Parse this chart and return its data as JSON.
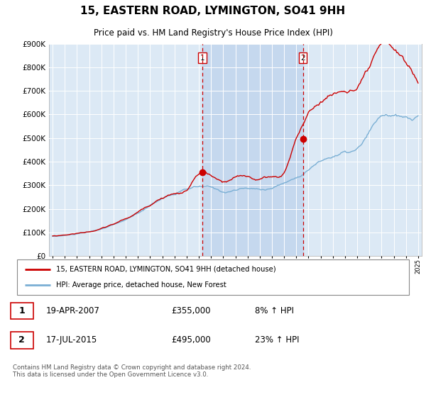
{
  "title": "15, EASTERN ROAD, LYMINGTON, SO41 9HH",
  "subtitle": "Price paid vs. HM Land Registry's House Price Index (HPI)",
  "legend_line1": "15, EASTERN ROAD, LYMINGTON, SO41 9HH (detached house)",
  "legend_line2": "HPI: Average price, detached house, New Forest",
  "transaction1_date": "19-APR-2007",
  "transaction1_price": "£355,000",
  "transaction1_hpi": "8% ↑ HPI",
  "transaction2_date": "17-JUL-2015",
  "transaction2_price": "£495,000",
  "transaction2_hpi": "23% ↑ HPI",
  "footer": "Contains HM Land Registry data © Crown copyright and database right 2024.\nThis data is licensed under the Open Government Licence v3.0.",
  "vline1_x": 2007.29,
  "vline2_x": 2015.54,
  "marker1_y": 355000,
  "marker2_y": 495000,
  "ylim": [
    0,
    900000
  ],
  "xlim_start": 1994.7,
  "xlim_end": 2025.3,
  "background_color": "#ffffff",
  "plot_bg_color": "#dce9f5",
  "shade_color": "#c5d8ee",
  "grid_color": "#ffffff",
  "red_line_color": "#cc0000",
  "blue_line_color": "#7aafd4",
  "vline_color": "#cc0000",
  "hpi_annual_years": [
    1995,
    1996,
    1997,
    1998,
    1999,
    2000,
    2001,
    2002,
    2003,
    2004,
    2005,
    2006,
    2007,
    2008,
    2009,
    2010,
    2011,
    2012,
    2013,
    2014,
    2015,
    2016,
    2017,
    2018,
    2019,
    2020,
    2021,
    2022,
    2023,
    2024,
    2025
  ],
  "hpi_annual_values": [
    83000,
    87000,
    93000,
    100000,
    112000,
    128000,
    148000,
    173000,
    206000,
    237000,
    255000,
    270000,
    278000,
    272000,
    256000,
    264000,
    268000,
    264000,
    272000,
    292000,
    315000,
    352000,
    385000,
    405000,
    418000,
    428000,
    488000,
    545000,
    548000,
    530000,
    535000
  ],
  "prop_annual_years": [
    1995,
    1996,
    1997,
    1998,
    1999,
    2000,
    2001,
    2002,
    2003,
    2004,
    2005,
    2006,
    2007,
    2008,
    2009,
    2010,
    2011,
    2012,
    2013,
    2014,
    2015,
    2016,
    2017,
    2018,
    2019,
    2020,
    2021,
    2022,
    2023,
    2024,
    2025
  ],
  "prop_annual_values": [
    85000,
    90000,
    97000,
    105000,
    118000,
    136000,
    158000,
    185000,
    220000,
    256000,
    273000,
    288000,
    355000,
    342000,
    310000,
    322000,
    325000,
    318000,
    328000,
    348000,
    495000,
    590000,
    650000,
    680000,
    700000,
    708000,
    768000,
    830000,
    815000,
    755000,
    680000
  ]
}
